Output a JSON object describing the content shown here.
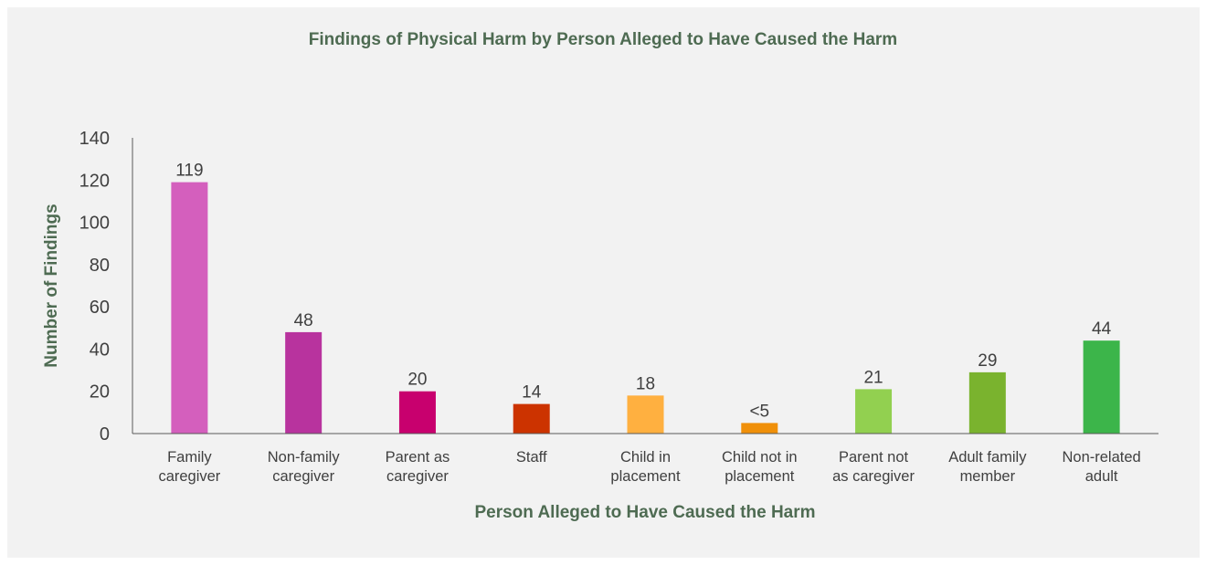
{
  "chart_data": {
    "type": "bar",
    "title": "Findings of Physical Harm by Person Alleged to Have Caused the Harm",
    "xlabel": "Person Alleged to Have Caused the Harm",
    "ylabel": "Number of Findings",
    "ylim": [
      0,
      140
    ],
    "yticks": [
      "0",
      "20",
      "40",
      "60",
      "80",
      "100",
      "120",
      "140"
    ],
    "grid": false,
    "categories": [
      [
        "Family",
        "caregiver"
      ],
      [
        "Non-family",
        "caregiver"
      ],
      [
        "Parent as",
        "caregiver"
      ],
      [
        "Staff"
      ],
      [
        "Child in",
        "placement"
      ],
      [
        "Child not in",
        "placement"
      ],
      [
        "Parent not",
        "as caregiver"
      ],
      [
        "Adult family",
        "member"
      ],
      [
        "Non-related",
        "adult"
      ]
    ],
    "values": [
      119,
      48,
      20,
      14,
      18,
      5,
      21,
      29,
      44
    ],
    "labels": [
      "119",
      "48",
      "20",
      "14",
      "18",
      "<5",
      "21",
      "29",
      "44"
    ],
    "colors": [
      "#d45fbd",
      "#b8339e",
      "#c8006e",
      "#cc3300",
      "#ffb040",
      "#f0900a",
      "#92d050",
      "#7ab32e",
      "#3cb54a"
    ]
  }
}
